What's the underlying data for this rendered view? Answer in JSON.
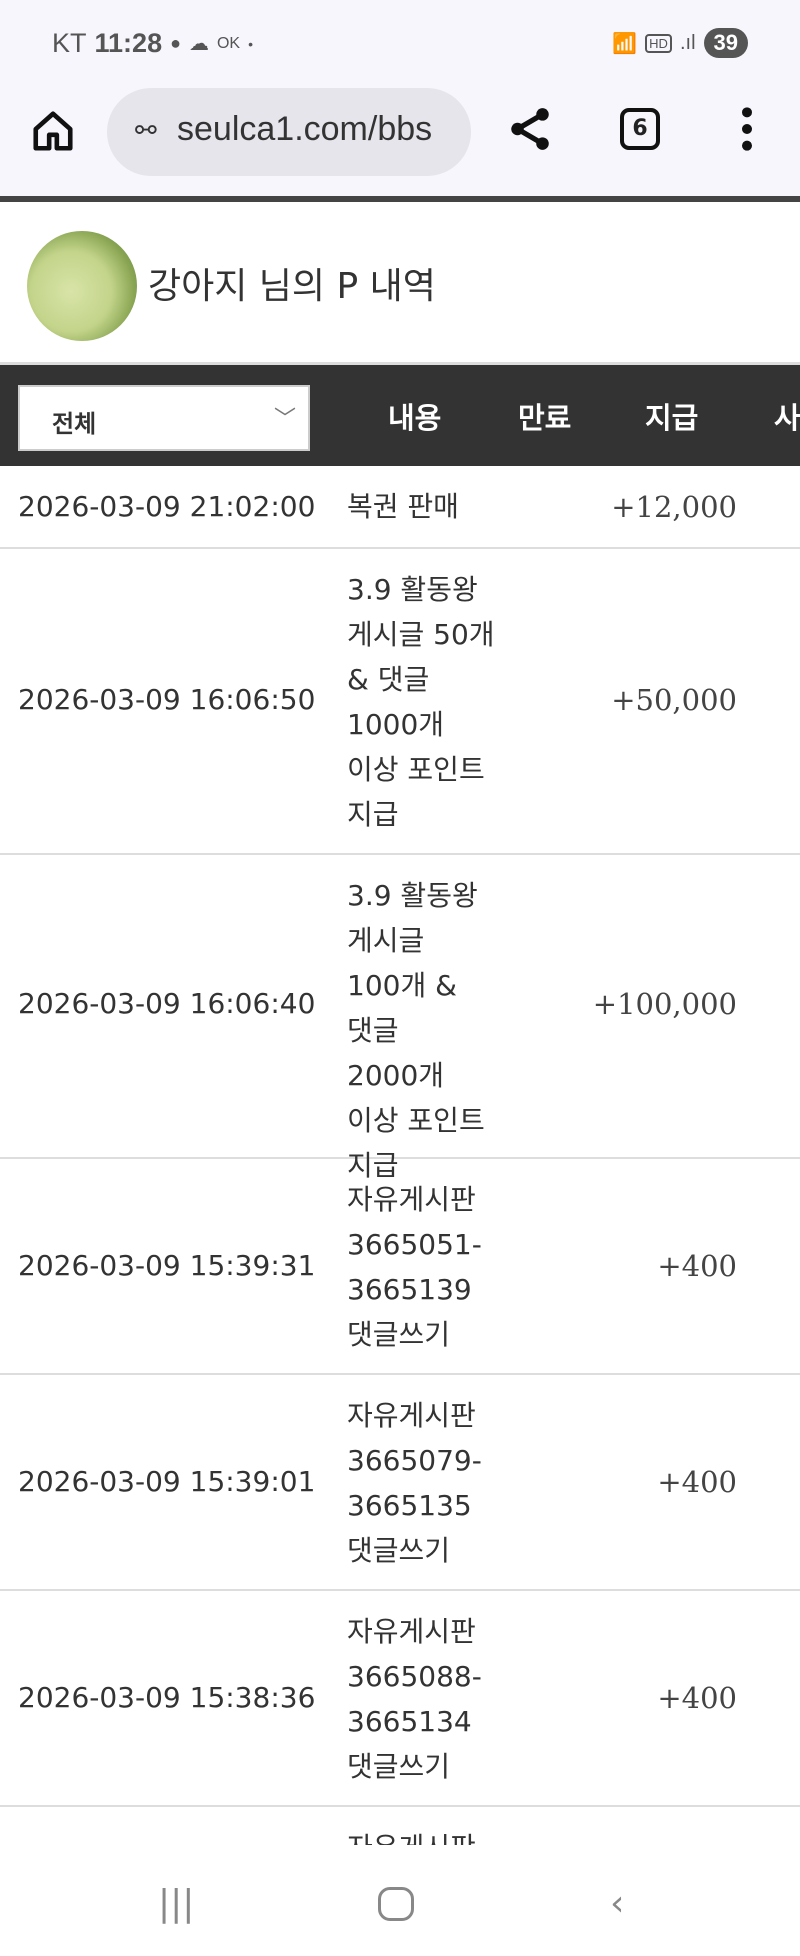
{
  "status_bar": {
    "carrier": "KT",
    "time": "11:28",
    "ok_label": "OK",
    "battery": "39"
  },
  "browser": {
    "url": "seulca1.com/bbs",
    "tab_count": "6"
  },
  "profile": {
    "title": "강아지 님의 P 내역"
  },
  "table": {
    "filter": "전체",
    "headers": [
      "내용",
      "만료",
      "지급",
      "사"
    ],
    "rows": [
      {
        "date": "2026-03-09 21:02:00",
        "content": "복권 판매",
        "amount": "+12,000"
      },
      {
        "date": "2026-03-09 16:06:50",
        "content": "3.9 활동왕 게시글 50개 & 댓글 1000개 이상 포인트 지급",
        "amount": "+50,000"
      },
      {
        "date": "2026-03-09 16:06:40",
        "content": "3.9 활동왕 게시글 100개 & 댓글 2000개 이상 포인트 지급",
        "amount": "+100,000"
      },
      {
        "date": "2026-03-09 15:39:31",
        "content": "자유게시판 3665051-3665139 댓글쓰기",
        "amount": "+400"
      },
      {
        "date": "2026-03-09 15:39:01",
        "content": "자유게시판 3665079-3665135 댓글쓰기",
        "amount": "+400"
      },
      {
        "date": "2026-03-09 15:38:36",
        "content": "자유게시판 3665088-3665134 댓글쓰기",
        "amount": "+400"
      },
      {
        "date": "",
        "content": "자유게시판",
        "amount": ""
      }
    ]
  }
}
